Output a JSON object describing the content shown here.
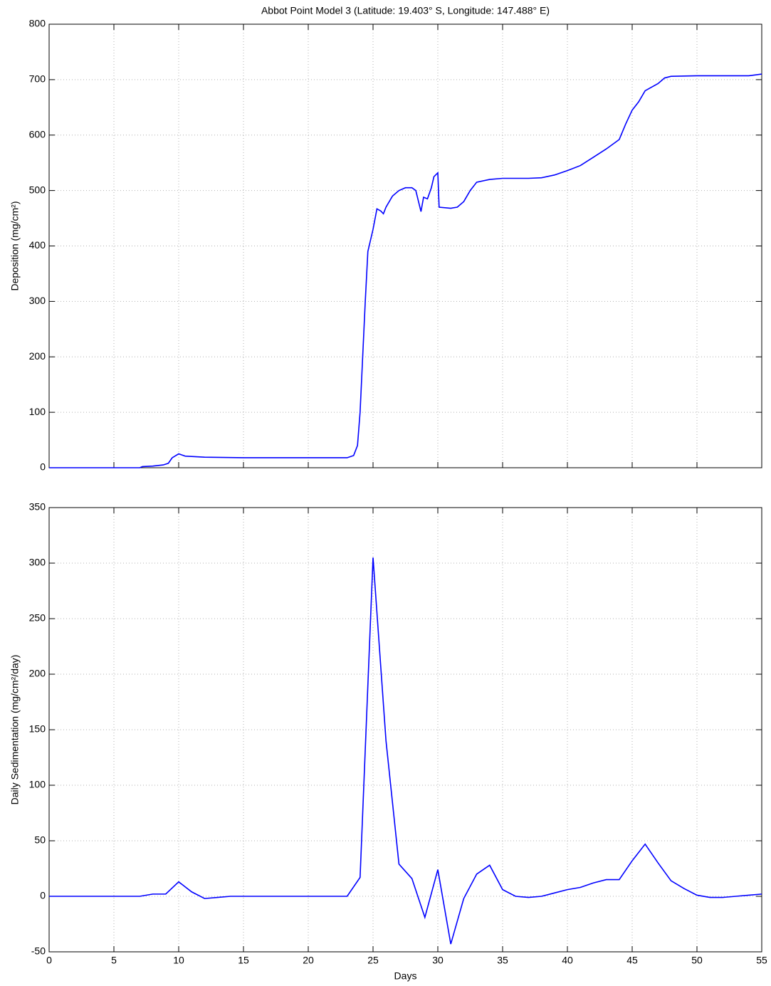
{
  "chart_data": [
    {
      "type": "line",
      "title": "Abbot Point Model 3 (Latitude: 19.403° S, Longitude: 147.488° E)",
      "ylabel": "Deposition (mg/cm²)",
      "x": [
        0,
        7,
        7.2,
        8,
        8.8,
        9.2,
        9.5,
        10,
        10.5,
        12,
        15,
        20,
        23,
        23.5,
        23.8,
        24,
        24.2,
        24.4,
        24.6,
        25,
        25.3,
        25.6,
        25.8,
        26,
        26.5,
        27,
        27.5,
        28,
        28.3,
        28.7,
        28.9,
        29.2,
        29.5,
        29.7,
        30,
        30.1,
        31,
        31.5,
        32,
        32.5,
        33,
        34,
        35,
        36,
        37,
        38,
        39,
        40,
        41,
        42,
        43,
        44,
        44.5,
        45,
        45.5,
        46,
        47,
        47.5,
        48,
        50,
        52,
        54,
        55
      ],
      "series": [
        {
          "name": "Deposition",
          "color": "#0000ff",
          "values": [
            0,
            0,
            2,
            3,
            5,
            8,
            18,
            25,
            21,
            19,
            18,
            18,
            18,
            22,
            40,
            100,
            200,
            300,
            390,
            430,
            467,
            463,
            458,
            470,
            490,
            500,
            505,
            505,
            500,
            462,
            488,
            485,
            505,
            525,
            532,
            470,
            468,
            470,
            480,
            500,
            515,
            520,
            522,
            522,
            522,
            523,
            528,
            536,
            545,
            560,
            575,
            592,
            620,
            645,
            660,
            680,
            693,
            703,
            706,
            707,
            707,
            707,
            710
          ]
        }
      ],
      "xlim": [
        0,
        55
      ],
      "xticks": [
        0,
        5,
        10,
        15,
        20,
        25,
        30,
        35,
        40,
        45,
        50,
        55
      ],
      "show_xtick_labels": false,
      "ylim": [
        0,
        800
      ],
      "yticks": [
        0,
        100,
        200,
        300,
        400,
        500,
        600,
        700,
        800
      ],
      "grid": true
    },
    {
      "type": "line",
      "xlabel": "Days",
      "ylabel": "Daily Sedimentation (mg/cm²/day)",
      "x": [
        0,
        1,
        2,
        3,
        4,
        5,
        6,
        7,
        8,
        9,
        10,
        11,
        12,
        13,
        14,
        15,
        16,
        17,
        18,
        19,
        20,
        21,
        22,
        23,
        24,
        25,
        26,
        27,
        28,
        29,
        30,
        31,
        32,
        33,
        34,
        35,
        36,
        37,
        38,
        39,
        40,
        41,
        42,
        43,
        44,
        45,
        46,
        47,
        48,
        49,
        50,
        51,
        52,
        53,
        54,
        55
      ],
      "series": [
        {
          "name": "Daily Sedimentation",
          "color": "#0000ff",
          "values": [
            0,
            0,
            0,
            0,
            0,
            0,
            0,
            0,
            2,
            2,
            13,
            4,
            -2,
            -1,
            0,
            0,
            0,
            0,
            0,
            0,
            0,
            0,
            0,
            0,
            17,
            305,
            140,
            29,
            16,
            -19,
            24,
            -43,
            -2,
            20,
            28,
            6,
            0,
            -1,
            0,
            3,
            6,
            8,
            12,
            15,
            15,
            32,
            47,
            30,
            14,
            7,
            1,
            -1,
            -1,
            0,
            1,
            2
          ]
        }
      ],
      "xlim": [
        0,
        55
      ],
      "xticks": [
        0,
        5,
        10,
        15,
        20,
        25,
        30,
        35,
        40,
        45,
        50,
        55
      ],
      "show_xtick_labels": true,
      "ylim": [
        -50,
        350
      ],
      "yticks": [
        -50,
        0,
        50,
        100,
        150,
        200,
        250,
        300,
        350
      ],
      "grid": true
    }
  ]
}
